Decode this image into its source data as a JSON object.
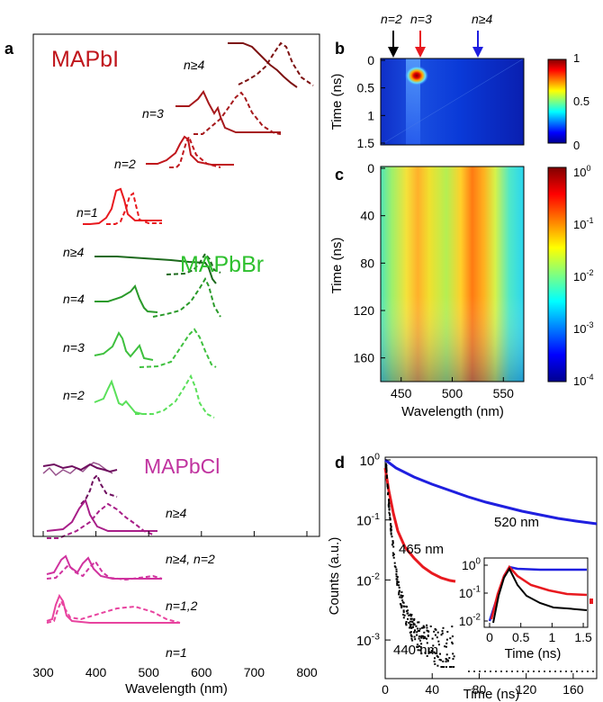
{
  "panel_labels": {
    "a": "a",
    "b": "b",
    "c": "c",
    "d": "d"
  },
  "panel_a": {
    "xlabel": "Wavelength (nm)",
    "xticks": [
      "300",
      "400",
      "500",
      "600",
      "700",
      "800"
    ],
    "groups": [
      {
        "name": "MAPbI",
        "color": "#c0161c",
        "labels": [
          "n≥4",
          "n=3",
          "n=2",
          "n=1"
        ]
      },
      {
        "name": "MAPbBr",
        "color": "#2ec02e",
        "labels": [
          "n≥4",
          "n=4",
          "n=3",
          "n=2"
        ]
      },
      {
        "name": "MAPbCl",
        "color": "#b8288f",
        "labels": [
          "n≥4",
          "n≥4, n=2",
          "n=1,2",
          "n=1"
        ]
      }
    ]
  },
  "panel_b": {
    "ylabel": "Time (ns)",
    "yticks": [
      "0",
      "0.5",
      "1",
      "1.5"
    ],
    "arrows": [
      {
        "label": "n=2",
        "color": "#000000"
      },
      {
        "label": "n=3",
        "color": "#e8191f"
      },
      {
        "label": "n≥4",
        "color": "#1d1ddf"
      }
    ],
    "colorbar_ticks": [
      "1",
      "0.5",
      "0"
    ]
  },
  "panel_c": {
    "ylabel": "Time (ns)",
    "xlabel": "Wavelength (nm)",
    "yticks": [
      "0",
      "40",
      "80",
      "120",
      "160"
    ],
    "xticks": [
      "450",
      "500",
      "550"
    ],
    "colorbar_ticks": [
      {
        "base": "10",
        "exp": "0"
      },
      {
        "base": "10",
        "exp": "-1"
      },
      {
        "base": "10",
        "exp": "-2"
      },
      {
        "base": "10",
        "exp": "-3"
      },
      {
        "base": "10",
        "exp": "-4"
      }
    ]
  },
  "panel_d": {
    "ylabel": "Counts (a.u.)",
    "xlabel": "Time (ns)",
    "xticks": [
      "0",
      "40",
      "80",
      "120",
      "160"
    ],
    "yticks": [
      {
        "base": "10",
        "exp": "0"
      },
      {
        "base": "10",
        "exp": "-1"
      },
      {
        "base": "10",
        "exp": "-2"
      },
      {
        "base": "10",
        "exp": "-3"
      }
    ],
    "series": [
      {
        "name": "520 nm",
        "color": "#1f1fdf"
      },
      {
        "name": "465 nm",
        "color": "#e8191f"
      },
      {
        "name": "440 nm",
        "color": "#000000"
      }
    ],
    "inset": {
      "xlabel": "Time (ns)",
      "xticks": [
        "0",
        "0.5",
        "1",
        "1.5"
      ],
      "yticks": [
        {
          "base": "10",
          "exp": "0"
        },
        {
          "base": "10",
          "exp": "-1"
        },
        {
          "base": "10",
          "exp": "-2"
        }
      ]
    }
  }
}
